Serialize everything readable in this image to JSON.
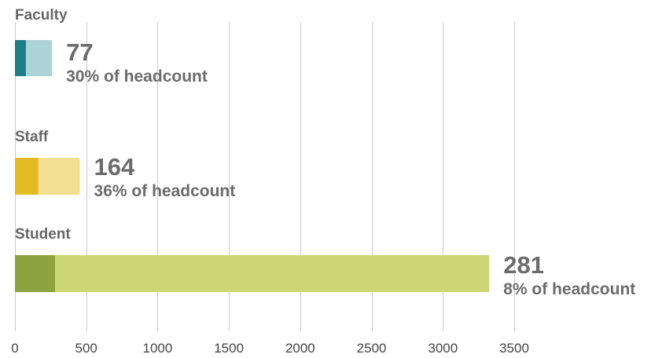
{
  "chart_data": {
    "type": "bar",
    "orientation": "horizontal",
    "stacked": true,
    "title": "",
    "xlabel": "",
    "ylabel": "",
    "xlim": [
      0,
      3500
    ],
    "xticks": [
      0,
      500,
      1000,
      1500,
      2000,
      2500,
      3000,
      3500
    ],
    "grid": true,
    "categories": [
      "Faculty",
      "Staff",
      "Student"
    ],
    "series": [
      {
        "values": [
          77,
          164,
          281
        ]
      },
      {
        "values": [
          183,
          291,
          3044
        ]
      }
    ],
    "totals": [
      260,
      455,
      3325
    ],
    "labels": [
      {
        "count": "77",
        "share": "30% of headcount"
      },
      {
        "count": "164",
        "share": "36% of headcount"
      },
      {
        "count": "281",
        "share": "8% of headcount"
      }
    ],
    "colors": [
      {
        "dark": "#1f7f86",
        "light": "#aed3d7"
      },
      {
        "dark": "#e2bb24",
        "light": "#f2df92"
      },
      {
        "dark": "#8da33f",
        "light": "#cdd675"
      }
    ]
  }
}
